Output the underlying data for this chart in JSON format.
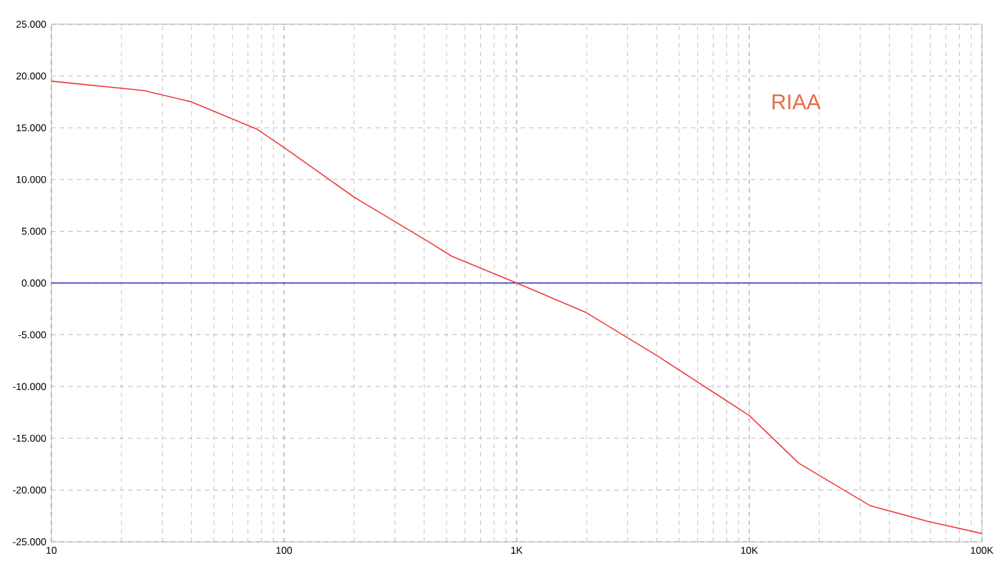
{
  "chart_data": {
    "type": "line",
    "log": "x",
    "grid": true,
    "marker": "none",
    "line_style": "solid",
    "x": [
      10,
      25,
      40,
      76,
      100,
      200,
      417,
      525,
      1000,
      1970,
      4000,
      10000,
      16300,
      33000,
      58000,
      100000
    ],
    "series": [
      {
        "color": "#ee3b3b",
        "values": [
          19.5,
          18.6,
          17.5,
          14.9,
          13.1,
          8.3,
          4,
          2.6,
          0,
          -2.8,
          -7,
          -12.8,
          -17.4,
          -21.5,
          -23,
          -24.2
        ]
      }
    ],
    "xlim": [
      10,
      100000
    ],
    "xticks": [
      {
        "value": 10,
        "label": "10"
      },
      {
        "value": 100,
        "label": "100"
      },
      {
        "value": 1000,
        "label": "1K"
      },
      {
        "value": 10000,
        "label": "10K"
      },
      {
        "value": 100000,
        "label": "100K"
      }
    ],
    "ylim": [
      -25,
      25
    ],
    "yticks": [
      {
        "value": -25,
        "label": "-25.000"
      },
      {
        "value": -20,
        "label": "-20.000"
      },
      {
        "value": -15,
        "label": "-15.000"
      },
      {
        "value": -10,
        "label": "-10.000"
      },
      {
        "value": -5,
        "label": "-5.000"
      },
      {
        "value": 0,
        "label": "0.000"
      },
      {
        "value": 5,
        "label": "5.000"
      },
      {
        "value": 10,
        "label": "10.000"
      },
      {
        "value": 15,
        "label": "15.000"
      },
      {
        "value": 20,
        "label": "20.000"
      },
      {
        "value": 25,
        "label": "25.000"
      }
    ],
    "ref_lines": [
      {
        "axis": "y",
        "value": 0,
        "color": "#3333cc"
      }
    ],
    "annotations": [
      "RIAA"
    ]
  }
}
